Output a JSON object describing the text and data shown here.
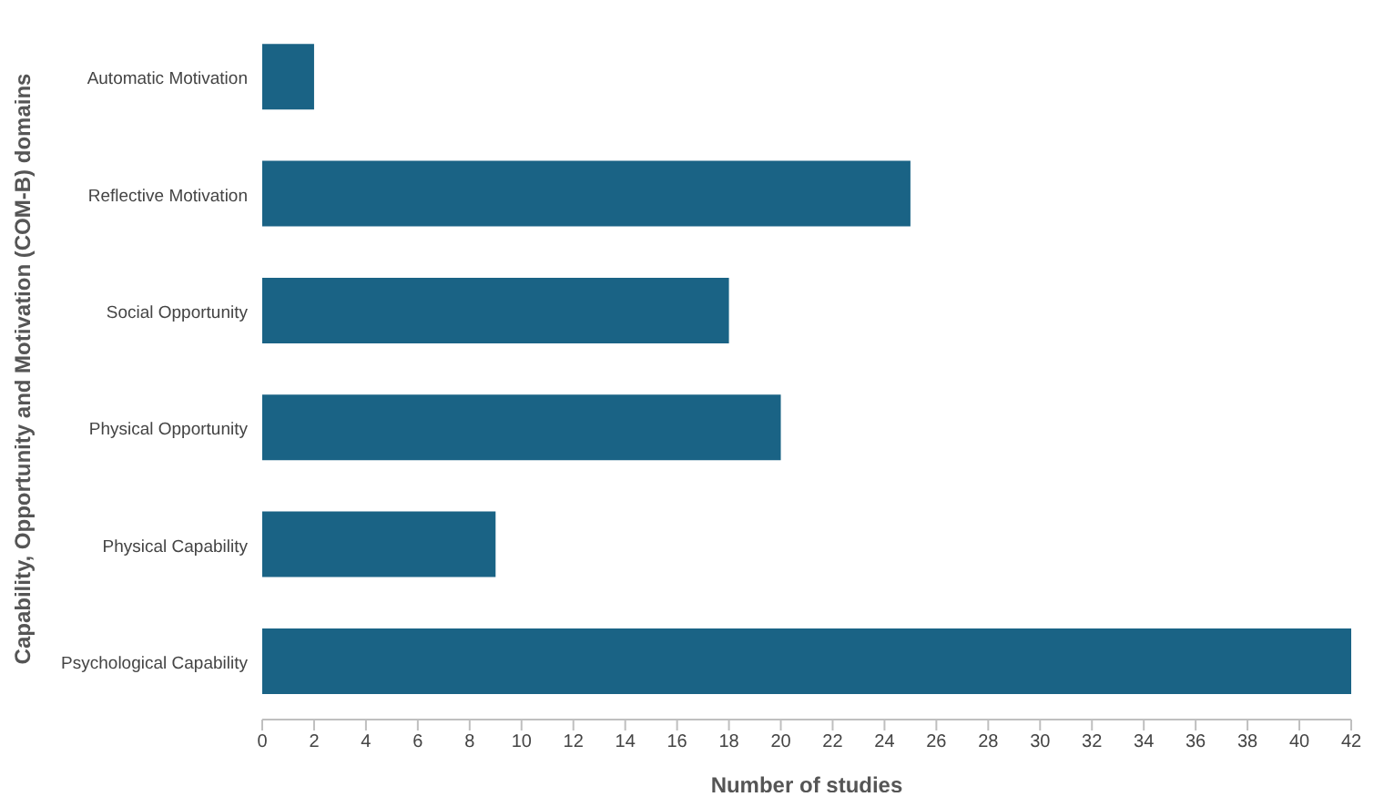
{
  "chart_data": {
    "type": "bar",
    "orientation": "horizontal",
    "categories": [
      "Automatic Motivation",
      "Reflective Motivation",
      "Social Opportunity",
      "Physical Opportunity",
      "Physical Capability",
      "Psychological Capability"
    ],
    "values": [
      2,
      25,
      18,
      20,
      9,
      42
    ],
    "color": "#1a6385",
    "xlim": [
      0,
      42
    ],
    "xticks": [
      0,
      2,
      4,
      6,
      8,
      10,
      12,
      14,
      16,
      18,
      20,
      22,
      24,
      26,
      28,
      30,
      32,
      34,
      36,
      38,
      40,
      42
    ],
    "xlabel": "Number of studies",
    "ylabel": "Capability, Opportunity and Motivation (COM-B) domains",
    "grid": false
  }
}
